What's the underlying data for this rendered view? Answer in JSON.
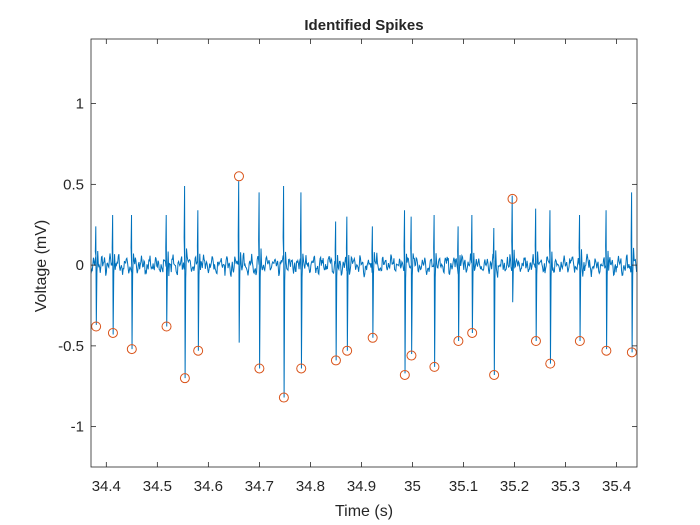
{
  "chart_data": {
    "type": "line",
    "title": "Identified Spikes",
    "xlabel": "Time (s)",
    "ylabel": "Voltage (mV)",
    "xlim": [
      34.37,
      35.44
    ],
    "ylim": [
      -1.25,
      1.4
    ],
    "xticks": [
      34.4,
      34.5,
      34.6,
      34.7,
      34.8,
      34.9,
      35.0,
      35.1,
      35.2,
      35.3,
      35.4
    ],
    "xtick_labels": [
      "34.4",
      "34.5",
      "34.6",
      "34.7",
      "34.8",
      "34.9",
      "35",
      "35.1",
      "35.2",
      "35.3",
      "35.4"
    ],
    "yticks": [
      -1,
      -0.5,
      0,
      0.5,
      1
    ],
    "ytick_labels": [
      "-1",
      "-0.5",
      "0",
      "0.5",
      "1"
    ],
    "grid": false,
    "series": [
      {
        "kind": "signal",
        "color": "#0072BD",
        "spikes": [
          {
            "t": 34.38,
            "max": 0.24,
            "min": -0.37
          },
          {
            "t": 34.413,
            "max": 0.31,
            "min": -0.43
          },
          {
            "t": 34.45,
            "max": 0.31,
            "min": -0.52
          },
          {
            "t": 34.518,
            "max": 0.31,
            "min": -0.38
          },
          {
            "t": 34.554,
            "max": 0.49,
            "min": -0.7
          },
          {
            "t": 34.58,
            "max": 0.34,
            "min": -0.53
          },
          {
            "t": 34.66,
            "max": 0.52,
            "min": -0.48
          },
          {
            "t": 34.7,
            "max": 0.45,
            "min": -0.64
          },
          {
            "t": 34.748,
            "max": 0.49,
            "min": -0.82
          },
          {
            "t": 34.782,
            "max": 0.45,
            "min": -0.64
          },
          {
            "t": 34.85,
            "max": 0.27,
            "min": -0.59
          },
          {
            "t": 34.872,
            "max": 0.3,
            "min": -0.53
          },
          {
            "t": 34.922,
            "max": 0.24,
            "min": -0.45
          },
          {
            "t": 34.985,
            "max": 0.34,
            "min": -0.67
          },
          {
            "t": 34.998,
            "max": 0.3,
            "min": -0.55
          },
          {
            "t": 35.043,
            "max": 0.31,
            "min": -0.63
          },
          {
            "t": 35.09,
            "max": 0.24,
            "min": -0.47
          },
          {
            "t": 35.117,
            "max": 0.31,
            "min": -0.42
          },
          {
            "t": 35.16,
            "max": 0.23,
            "min": -0.68
          },
          {
            "t": 35.196,
            "max": 0.43,
            "min": -0.23
          },
          {
            "t": 35.242,
            "max": 0.35,
            "min": -0.47
          },
          {
            "t": 35.27,
            "max": 0.34,
            "min": -0.61
          },
          {
            "t": 35.328,
            "max": 0.31,
            "min": -0.47
          },
          {
            "t": 35.38,
            "max": 0.34,
            "min": -0.52
          },
          {
            "t": 35.43,
            "max": 0.45,
            "min": -0.54
          }
        ]
      },
      {
        "kind": "markers",
        "marker": "circle",
        "color": "#D95319",
        "points": [
          {
            "x": 34.38,
            "y": -0.38
          },
          {
            "x": 34.413,
            "y": -0.42
          },
          {
            "x": 34.45,
            "y": -0.52
          },
          {
            "x": 34.518,
            "y": -0.38
          },
          {
            "x": 34.554,
            "y": -0.7
          },
          {
            "x": 34.58,
            "y": -0.53
          },
          {
            "x": 34.66,
            "y": 0.55
          },
          {
            "x": 34.7,
            "y": -0.64
          },
          {
            "x": 34.748,
            "y": -0.82
          },
          {
            "x": 34.782,
            "y": -0.64
          },
          {
            "x": 34.85,
            "y": -0.59
          },
          {
            "x": 34.872,
            "y": -0.53
          },
          {
            "x": 34.922,
            "y": -0.45
          },
          {
            "x": 34.985,
            "y": -0.68
          },
          {
            "x": 34.998,
            "y": -0.56
          },
          {
            "x": 35.043,
            "y": -0.63
          },
          {
            "x": 35.09,
            "y": -0.47
          },
          {
            "x": 35.117,
            "y": -0.42
          },
          {
            "x": 35.16,
            "y": -0.68
          },
          {
            "x": 35.196,
            "y": 0.41
          },
          {
            "x": 35.242,
            "y": -0.47
          },
          {
            "x": 35.27,
            "y": -0.61
          },
          {
            "x": 35.328,
            "y": -0.47
          },
          {
            "x": 35.38,
            "y": -0.53
          },
          {
            "x": 35.43,
            "y": -0.54
          }
        ]
      }
    ]
  }
}
